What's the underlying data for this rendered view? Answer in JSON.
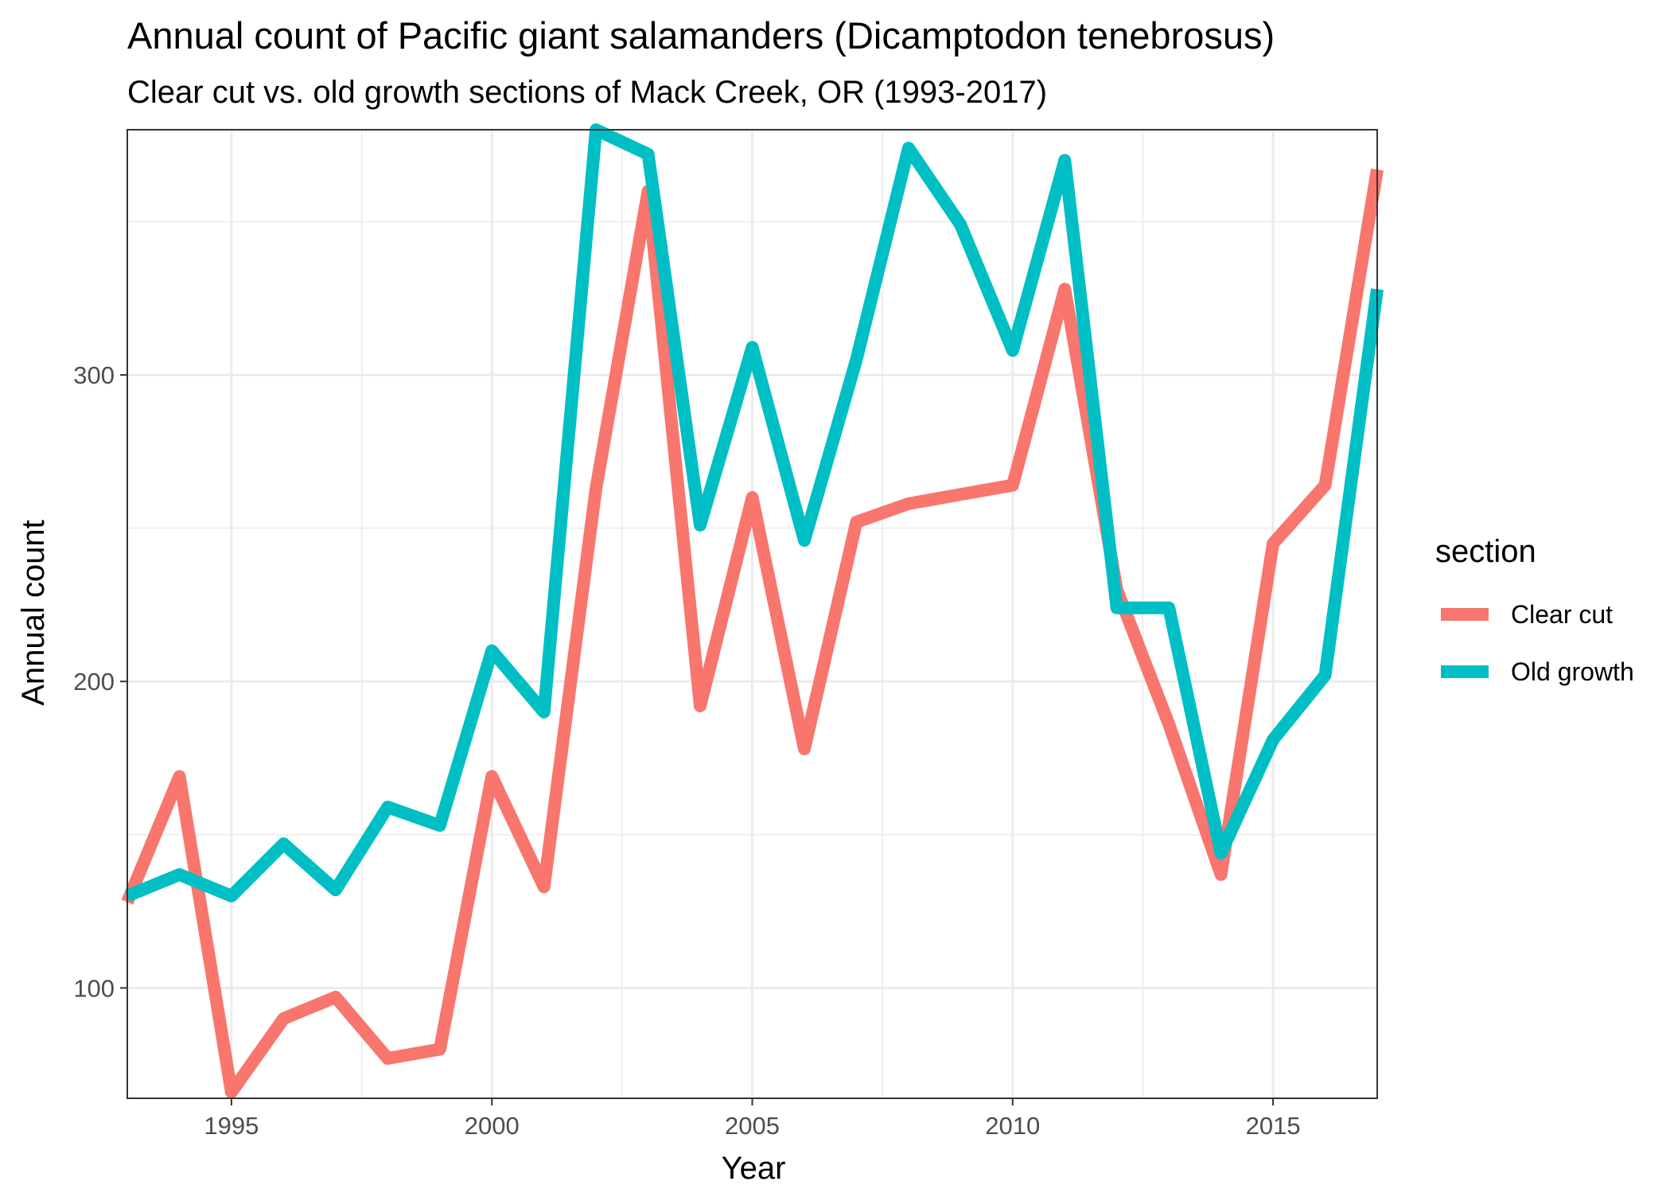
{
  "chart_data": {
    "type": "line",
    "title": "Annual count of Pacific giant salamanders (Dicamptodon tenebrosus)",
    "subtitle": "Clear cut vs. old growth sections of Mack Creek, OR (1993-2017)",
    "xlabel": "Year",
    "ylabel": "Annual count",
    "xlim": [
      1993,
      2017
    ],
    "ylim": [
      64,
      380
    ],
    "x_ticks": [
      1995,
      2000,
      2005,
      2010,
      2015
    ],
    "y_ticks": [
      100,
      200,
      300
    ],
    "x_minor_ticks": [
      1997.5,
      2002.5,
      2007.5,
      2012.5
    ],
    "y_minor_ticks": [
      150,
      250,
      350
    ],
    "grid": true,
    "legend": {
      "title": "section",
      "position": "right"
    },
    "x": [
      1993,
      1994,
      1995,
      1996,
      1997,
      1998,
      1999,
      2000,
      2001,
      2002,
      2003,
      2004,
      2005,
      2006,
      2007,
      2008,
      2009,
      2010,
      2011,
      2012,
      2013,
      2014,
      2015,
      2016,
      2017
    ],
    "series": [
      {
        "name": "Clear cut",
        "color": "#F8766D",
        "values": [
          128,
          169,
          66,
          90,
          97,
          77,
          80,
          169,
          133,
          263,
          360,
          192,
          260,
          178,
          252,
          258,
          261,
          264,
          328,
          230,
          186,
          137,
          245,
          264,
          367
        ]
      },
      {
        "name": "Old growth",
        "color": "#00BFC4",
        "values": [
          130,
          137,
          130,
          147,
          132,
          159,
          153,
          210,
          190,
          380,
          372,
          251,
          309,
          246,
          305,
          374,
          349,
          308,
          370,
          224,
          224,
          144,
          181,
          202,
          328
        ]
      }
    ]
  }
}
